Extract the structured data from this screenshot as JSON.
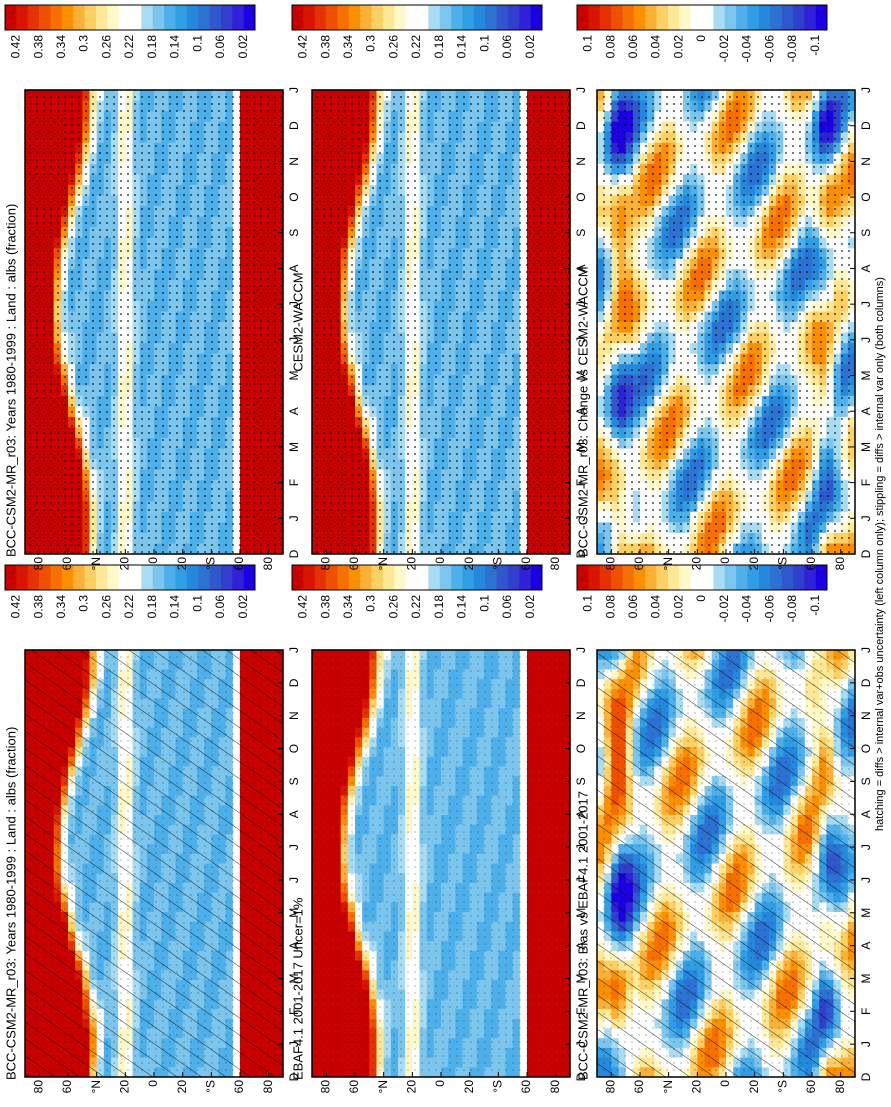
{
  "panels": [
    {
      "title": "BCC-CSM2-MR_r03: Years 1980-1999 : Land : albs (fraction)",
      "colorbar": [
        "0.42",
        "0.38",
        "0.34",
        "0.3",
        "0.26",
        "0.22",
        "0.18",
        "0.14",
        "0.1",
        "0.06",
        "0.02"
      ]
    },
    {
      "title": "BCC-CSM2-MR_r03: Years 1980-1999 : Land : albs (fraction)",
      "colorbar": [
        "0.42",
        "0.38",
        "0.34",
        "0.3",
        "0.26",
        "0.22",
        "0.18",
        "0.14",
        "0.1",
        "0.06",
        "0.02"
      ]
    },
    {
      "title": "EBAF4.1 2001-2017 Uncer=1%",
      "colorbar": [
        "0.42",
        "0.38",
        "0.34",
        "0.3",
        "0.26",
        "0.22",
        "0.18",
        "0.14",
        "0.1",
        "0.06",
        "0.02"
      ]
    },
    {
      "title": "CESM2-WACCM",
      "colorbar": [
        "0.42",
        "0.38",
        "0.34",
        "0.3",
        "0.26",
        "0.22",
        "0.18",
        "0.14",
        "0.1",
        "0.06",
        "0.02"
      ]
    },
    {
      "title": "BCC-CSM2-MR_r03: Bias vs EBAF4.1 2001-2017",
      "colorbar": [
        "0.1",
        "0.08",
        "0.06",
        "0.04",
        "0.02",
        "0",
        "-0.02",
        "-0.04",
        "-0.06",
        "-0.08",
        "-0.1"
      ]
    },
    {
      "title": "BCC-CSM2-MR_r03: Change vs CESM2-WACCM",
      "colorbar": [
        "0.1",
        "0.08",
        "0.06",
        "0.04",
        "0.02",
        "0",
        "-0.02",
        "-0.04",
        "-0.06",
        "-0.08",
        "-0.1"
      ]
    }
  ],
  "lat_labels": [
    "80",
    "60",
    "°N",
    "20",
    "0",
    "20",
    "°S",
    "60",
    "80"
  ],
  "months": [
    "D",
    "J",
    "F",
    "M",
    "A",
    "M",
    "J",
    "J",
    "A",
    "S",
    "O",
    "N",
    "D",
    "J"
  ],
  "footnote": "hatching = diffs > internal var+obs uncertainty (left column only); stippling = diffs > internal var only (both columns)"
}
